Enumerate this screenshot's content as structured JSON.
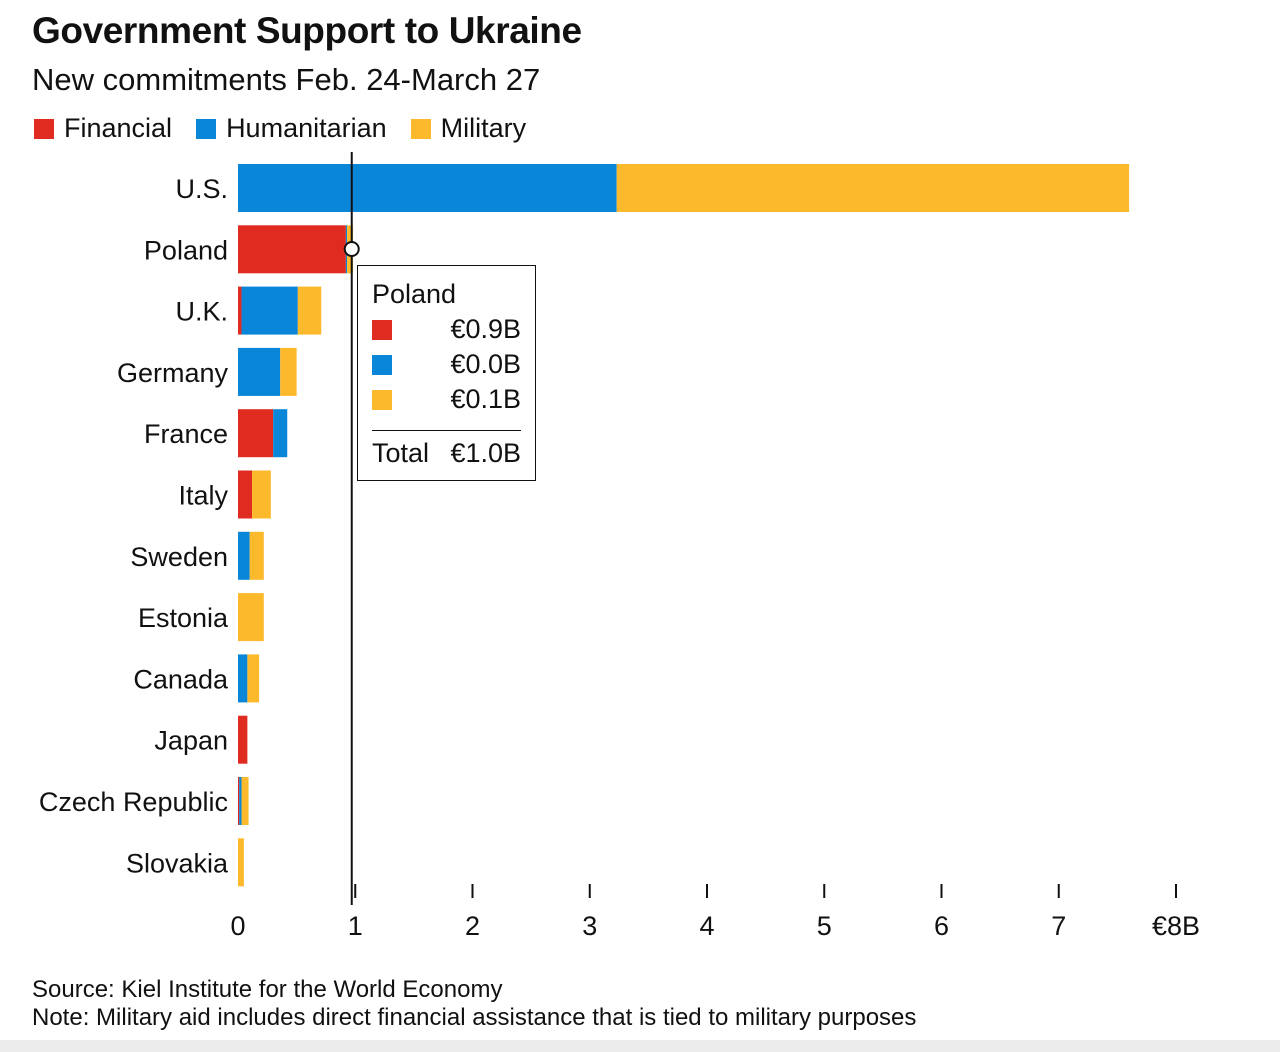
{
  "chart_data": {
    "type": "bar",
    "orientation": "horizontal",
    "stacked": true,
    "title": "Government Support to Ukraine",
    "subtitle": "New commitments Feb. 24-March 27",
    "categories": [
      "U.S.",
      "Poland",
      "U.K.",
      "Germany",
      "France",
      "Italy",
      "Sweden",
      "Estonia",
      "Canada",
      "Japan",
      "Czech Republic",
      "Slovakia"
    ],
    "series": [
      {
        "name": "Financial",
        "color": "#e02b20",
        "values": [
          0,
          0.92,
          0.03,
          0,
          0.3,
          0.12,
          0,
          0,
          0,
          0.08,
          0.01,
          0
        ]
      },
      {
        "name": "Humanitarian",
        "color": "#0a86d9",
        "values": [
          3.23,
          0.01,
          0.48,
          0.36,
          0.12,
          0,
          0.1,
          0,
          0.08,
          0,
          0.02,
          0
        ]
      },
      {
        "name": "Military",
        "color": "#fdb92c",
        "values": [
          4.37,
          0.05,
          0.2,
          0.14,
          0,
          0.16,
          0.12,
          0.22,
          0.1,
          0,
          0.06,
          0.05
        ]
      }
    ],
    "xlim": [
      0,
      8
    ],
    "x_ticks": [
      0,
      1,
      2,
      3,
      4,
      5,
      6,
      7,
      8
    ],
    "x_tick_labels": [
      "0",
      "1",
      "2",
      "3",
      "4",
      "5",
      "6",
      "7",
      "€8B"
    ],
    "legend_position": "top-left",
    "grid": false,
    "cursor_value": 0.97,
    "tooltip": {
      "category": "Poland",
      "rows": [
        {
          "series": "Financial",
          "color": "#e02b20",
          "value": "€0.9B"
        },
        {
          "series": "Humanitarian",
          "color": "#0a86d9",
          "value": "€0.0B"
        },
        {
          "series": "Military",
          "color": "#fdb92c",
          "value": "€0.1B"
        }
      ],
      "total_label": "Total",
      "total_value": "€1.0B"
    }
  },
  "footer": {
    "source": "Source: Kiel Institute for the World Economy",
    "note": "Note: Military aid includes direct financial assistance that is tied to military purposes"
  }
}
